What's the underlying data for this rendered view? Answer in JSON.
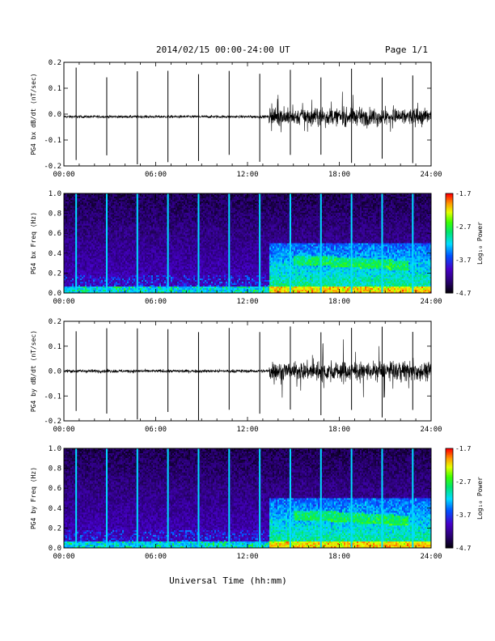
{
  "header": {
    "title": "2014/02/15  00:00-24:00 UT",
    "page": "Page 1/1"
  },
  "x_axis": {
    "label": "Universal Time (hh:mm)",
    "ticks": [
      "00:00",
      "06:00",
      "12:00",
      "18:00",
      "24:00"
    ],
    "range_hours": [
      0,
      24
    ]
  },
  "chart_data": [
    {
      "type": "line",
      "panel": "bx-timeseries",
      "ylabel": "PG4 bx dB/dt (nT/sec)",
      "ylim": [
        -0.2,
        0.2
      ],
      "yticks": [
        "0.2",
        "0.1",
        "0.0",
        "-0.1",
        "-0.2"
      ],
      "baseline": -0.01,
      "spikes_hours": [
        0.8,
        2.8,
        4.8,
        6.8,
        8.8,
        10.8,
        12.8,
        14.8,
        16.8,
        18.8,
        20.8,
        22.8
      ],
      "disturbed_interval_hours": [
        13.4,
        24
      ],
      "disturbed_amplitude": 0.06,
      "quiet_amplitude": 0.01,
      "grid": false
    },
    {
      "type": "heatmap",
      "panel": "bx-spectrogram",
      "ylabel": "PG4 bx Freq (Hz)",
      "ylim": [
        0,
        1.0
      ],
      "yticks": [
        "1.0",
        "0.8",
        "0.6",
        "0.4",
        "0.2",
        "0.0"
      ],
      "colorbar": {
        "label": "Log₁₀ Power",
        "ticks": [
          "-1.7",
          "-2.7",
          "-3.7",
          "-4.7"
        ],
        "range": [
          -4.7,
          -1.7
        ]
      },
      "grid": false
    },
    {
      "type": "line",
      "panel": "by-timeseries",
      "ylabel": "PG4 by dB/dt (nT/sec)",
      "ylim": [
        -0.2,
        0.2
      ],
      "yticks": [
        "0.2",
        "0.1",
        "0.0",
        "-0.1",
        "-0.2"
      ],
      "baseline": 0.0,
      "spikes_hours": [
        0.8,
        2.8,
        4.8,
        6.8,
        8.8,
        10.8,
        12.8,
        14.8,
        16.8,
        18.8,
        20.8,
        22.8
      ],
      "disturbed_interval_hours": [
        13.4,
        24
      ],
      "disturbed_amplitude": 0.07,
      "quiet_amplitude": 0.012,
      "grid": false
    },
    {
      "type": "heatmap",
      "panel": "by-spectrogram",
      "ylabel": "PG4 by Freq (Hz)",
      "ylim": [
        0,
        1.0
      ],
      "yticks": [
        "1.0",
        "0.8",
        "0.6",
        "0.4",
        "0.2",
        "0.0"
      ],
      "colorbar": {
        "label": "Log₁₀ Power",
        "ticks": [
          "-1.7",
          "-2.7",
          "-3.7",
          "-4.7"
        ],
        "range": [
          -4.7,
          -1.7
        ]
      },
      "grid": false
    }
  ]
}
